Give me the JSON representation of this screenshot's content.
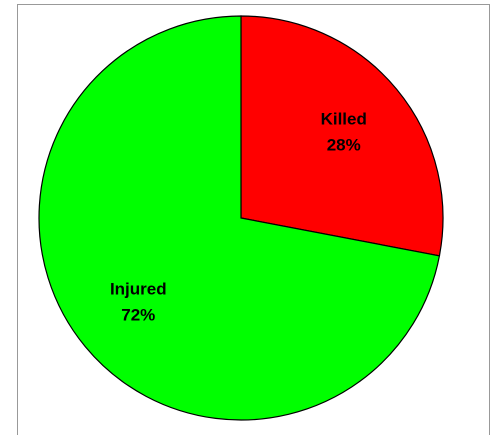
{
  "chart_data": {
    "type": "pie",
    "categories": [
      "Killed",
      "Injured"
    ],
    "values": [
      28,
      72
    ],
    "value_labels": [
      "28%",
      "72%"
    ],
    "colors": [
      "#ff0000",
      "#00ff00"
    ]
  }
}
